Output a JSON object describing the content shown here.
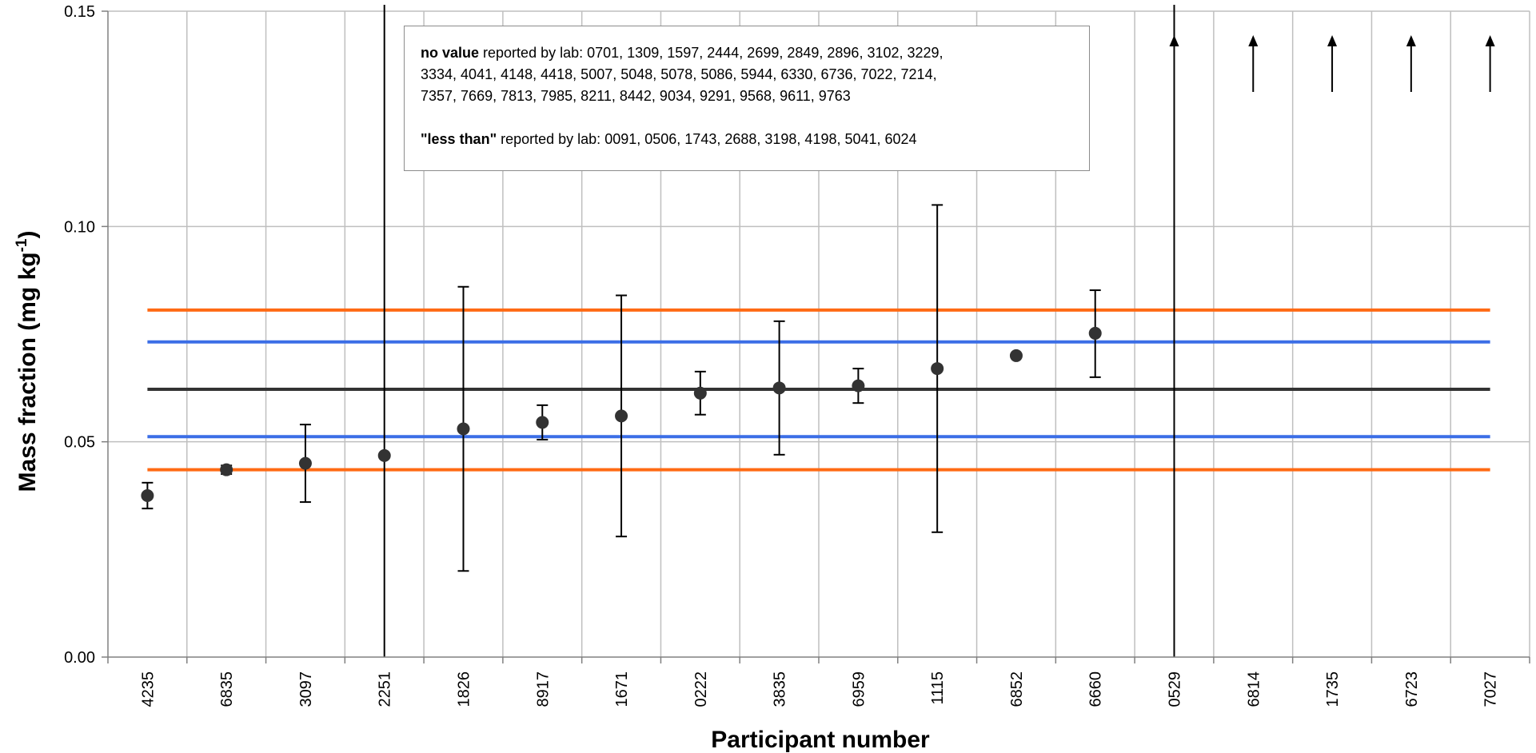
{
  "chart_data": {
    "type": "scatter",
    "title": "",
    "xlabel": "Participant number",
    "ylabel": "Mass fraction (mg kg",
    "ylabel_sup": "-1",
    "ylabel_close": ")",
    "ylim": [
      0.0,
      0.15
    ],
    "yticks": [
      "0.00",
      "0.05",
      "0.10",
      "0.15"
    ],
    "ytick_values": [
      0.0,
      0.05,
      0.1,
      0.15
    ],
    "grid": true,
    "categories": [
      "4235",
      "6835",
      "3097",
      "2251",
      "1826",
      "8917",
      "1671",
      "0222",
      "3835",
      "6959",
      "1115",
      "6852",
      "6660",
      "0529",
      "6814",
      "1735",
      "6723",
      "7027"
    ],
    "points": [
      {
        "participant": "4235",
        "value": 0.0375,
        "low": 0.0345,
        "high": 0.0405
      },
      {
        "participant": "6835",
        "value": 0.0435,
        "low": 0.0425,
        "high": 0.0445
      },
      {
        "participant": "3097",
        "value": 0.045,
        "low": 0.036,
        "high": 0.054
      },
      {
        "participant": "2251",
        "value": 0.0468,
        "low": null,
        "high": null,
        "full_range_bar": true
      },
      {
        "participant": "1826",
        "value": 0.053,
        "low": 0.02,
        "high": 0.086
      },
      {
        "participant": "8917",
        "value": 0.0545,
        "low": 0.0505,
        "high": 0.0585
      },
      {
        "participant": "1671",
        "value": 0.056,
        "low": 0.028,
        "high": 0.084
      },
      {
        "participant": "0222",
        "value": 0.0613,
        "low": 0.0563,
        "high": 0.0663
      },
      {
        "participant": "3835",
        "value": 0.0625,
        "low": 0.047,
        "high": 0.078
      },
      {
        "participant": "6959",
        "value": 0.063,
        "low": 0.059,
        "high": 0.067
      },
      {
        "participant": "1115",
        "value": 0.067,
        "low": 0.029,
        "high": 0.105
      },
      {
        "participant": "6852",
        "value": 0.07,
        "low": null,
        "high": null
      },
      {
        "participant": "6660",
        "value": 0.0752,
        "low": 0.065,
        "high": 0.0852
      },
      {
        "participant": "0529",
        "value": null,
        "off_scale_high": true,
        "full_range_bar": true
      },
      {
        "participant": "6814",
        "value": null,
        "off_scale_high": true
      },
      {
        "participant": "1735",
        "value": null,
        "off_scale_high": true
      },
      {
        "participant": "6723",
        "value": null,
        "off_scale_high": true
      },
      {
        "participant": "7027",
        "value": null,
        "off_scale_high": true
      }
    ],
    "reference_lines": [
      {
        "value": 0.0622,
        "color": "#333333"
      },
      {
        "value": 0.0732,
        "color": "#3b6ee6"
      },
      {
        "value": 0.0512,
        "color": "#3b6ee6"
      },
      {
        "value": 0.0806,
        "color": "#ff6a14"
      },
      {
        "value": 0.0435,
        "color": "#ff6a14"
      }
    ],
    "annotation": {
      "no_value_label": "no value",
      "no_value_prefix": " reported by lab: ",
      "no_value_line1": "0701, 1309, 1597, 2444, 2699, 2849, 2896, 3102, 3229,",
      "no_value_line2": "3334, 4041, 4148, 4418, 5007, 5048, 5078, 5086, 5944, 6330, 6736, 7022, 7214,",
      "no_value_line3": "7357, 7669, 7813, 7985, 8211, 8442, 9034, 9291, 9568, 9611, 9763",
      "less_than_label": "\"less than\"",
      "less_than_prefix": " reported by lab: ",
      "less_than_line": "0091, 0506, 1743, 2688, 3198, 4198, 5041, 6024"
    },
    "colors": {
      "marker": "#333333",
      "grid": "#bfbfbf",
      "axis": "#808080"
    }
  }
}
